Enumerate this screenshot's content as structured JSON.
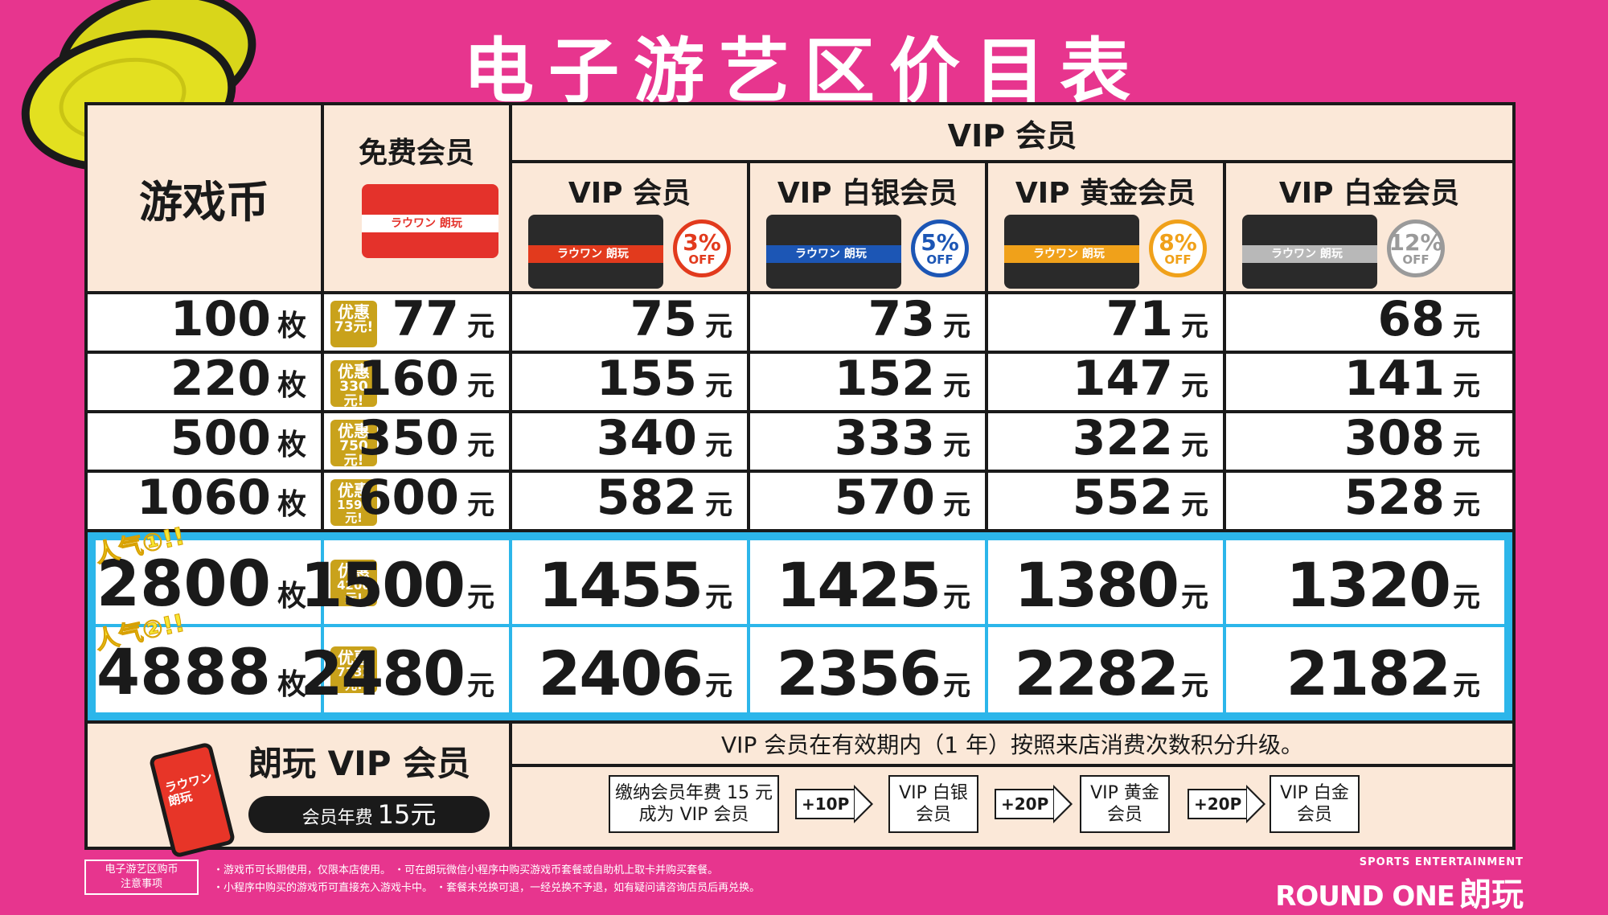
{
  "title": "电子游艺区价目表",
  "header": {
    "coins_label": "游戏币",
    "free_member": "免费会员",
    "vip_group": "VIP 会员",
    "tiers": [
      {
        "name": "VIP 会员",
        "discount_pct": "3%",
        "off": "OFF",
        "color": "#e23a1d"
      },
      {
        "name": "VIP 白银会员",
        "discount_pct": "5%",
        "off": "OFF",
        "color": "#1c56b5"
      },
      {
        "name": "VIP 黄金会员",
        "discount_pct": "8%",
        "off": "OFF",
        "color": "#f0a11a"
      },
      {
        "name": "VIP 白金会员",
        "discount_pct": "12%",
        "off": "OFF",
        "color": "#9a9a9a"
      }
    ],
    "card_brand": "ラウワン 朗玩"
  },
  "rows": [
    {
      "coins": "100",
      "unit": "枚",
      "promo": "优惠",
      "promo_value": "73元!",
      "free": "77",
      "vip": "75",
      "silver": "73",
      "gold": "71",
      "platinum": "68"
    },
    {
      "coins": "220",
      "unit": "枚",
      "promo": "优惠",
      "promo_value": "330元!",
      "free": "160",
      "vip": "155",
      "silver": "152",
      "gold": "147",
      "platinum": "141"
    },
    {
      "coins": "500",
      "unit": "枚",
      "promo": "优惠",
      "promo_value": "750元!",
      "free": "350",
      "vip": "340",
      "silver": "333",
      "gold": "322",
      "platinum": "308"
    },
    {
      "coins": "1060",
      "unit": "枚",
      "promo": "优惠",
      "promo_value": "1590元!",
      "free": "600",
      "vip": "582",
      "silver": "570",
      "gold": "552",
      "platinum": "528"
    },
    {
      "coins": "2800",
      "unit": "枚",
      "promo": "优惠",
      "promo_value": "4200元!",
      "free": "1500",
      "vip": "1455",
      "silver": "1425",
      "gold": "1380",
      "platinum": "1320",
      "tag": "人气①!!"
    },
    {
      "coins": "4888",
      "unit": "枚",
      "promo": "优惠",
      "promo_value": "7332元!",
      "free": "2480",
      "vip": "2406",
      "silver": "2356",
      "gold": "2282",
      "platinum": "2182",
      "tag": "人气②!!"
    }
  ],
  "currency": "元",
  "bottom": {
    "vip_title": "朗玩 VIP 会员",
    "fee_label": "会员年费",
    "fee_value": "15元",
    "phone_label": "ラウワン 朗玩",
    "upgrade_note": "VIP 会员在有效期内（1 年）按照来店消费次数积分升级。",
    "steps": [
      {
        "line1": "缴纳会员年费 15 元",
        "line2": "成为 VIP 会员"
      },
      {
        "line1": "VIP 白银",
        "line2": "会员"
      },
      {
        "line1": "VIP 黄金",
        "line2": "会员"
      },
      {
        "line1": "VIP 白金",
        "line2": "会员"
      }
    ],
    "arrows": [
      "+10P",
      "+20P",
      "+20P"
    ]
  },
  "footer": {
    "box_line1": "电子游艺区购币",
    "box_line2": "注意事项",
    "note1": "・游戏币可长期使用，仅限本店使用。 ・可在朗玩微信小程序中购买游戏币套餐或自助机上取卡并购买套餐。",
    "note2": "・小程序中购买的游戏币可直接充入游戏卡中。 ・套餐未兑换可退，一经兑换不予退，如有疑问请咨询店员后再兑换。",
    "logo_small": "SPORTS ENTERTAINMENT",
    "logo_text": "ROUND ONE",
    "logo_cn": "朗玩"
  }
}
